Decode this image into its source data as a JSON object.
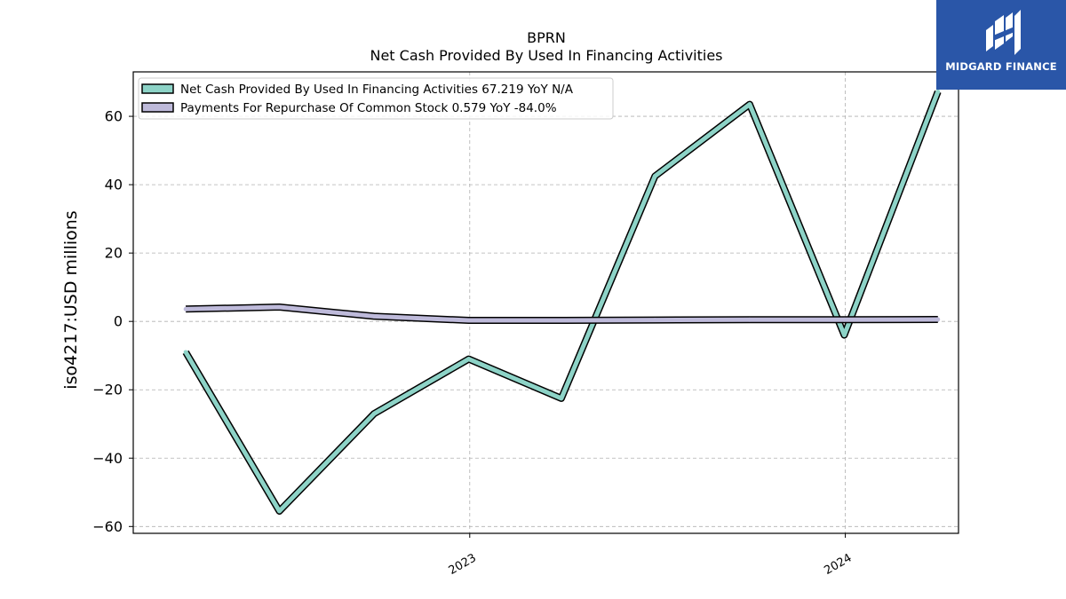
{
  "brand": {
    "name": "MIDGARD FINANCE",
    "color": "#2a56a8"
  },
  "chart_data": {
    "type": "line",
    "title": "BPRN",
    "subtitle": "Net Cash Provided By Used In Financing Activities",
    "ylabel": "iso4217:USD  millions",
    "xlabel": "",
    "ylim": [
      -62,
      73
    ],
    "yticks": [
      60,
      40,
      20,
      0,
      -20,
      -40,
      -60
    ],
    "ytick_labels": [
      "60",
      "40",
      "20",
      "0",
      "−20",
      "−40",
      "−60"
    ],
    "xlim": [
      "2022-02-08",
      "2024-04-20"
    ],
    "xticks": [
      "2023-01-01",
      "2024-01-01"
    ],
    "xtick_labels": [
      "2023",
      "2024"
    ],
    "grid": true,
    "legend_position": "top-left",
    "series": [
      {
        "name": "Net Cash Provided By Used In Financing Activities  67.219 YoY N/A",
        "color": "#8dd3c7",
        "x": [
          "2022-03-31",
          "2022-06-30",
          "2022-09-30",
          "2022-12-31",
          "2023-03-31",
          "2023-06-30",
          "2023-09-30",
          "2023-12-31",
          "2024-03-31"
        ],
        "values": [
          -9.0,
          -55.5,
          -27.0,
          -11.0,
          -22.5,
          42.5,
          63.5,
          -4.0,
          67.219
        ]
      },
      {
        "name": "Payments For Repurchase Of Common Stock  0.579 YoY -84.0%",
        "color": "#bebada",
        "x": [
          "2022-03-31",
          "2022-06-30",
          "2022-09-30",
          "2022-12-31",
          "2023-03-31",
          "2023-06-30",
          "2023-09-30",
          "2023-12-31",
          "2024-03-31"
        ],
        "values": [
          3.6,
          4.2,
          1.5,
          0.3,
          0.3,
          0.4,
          0.5,
          0.5,
          0.579
        ]
      }
    ]
  }
}
